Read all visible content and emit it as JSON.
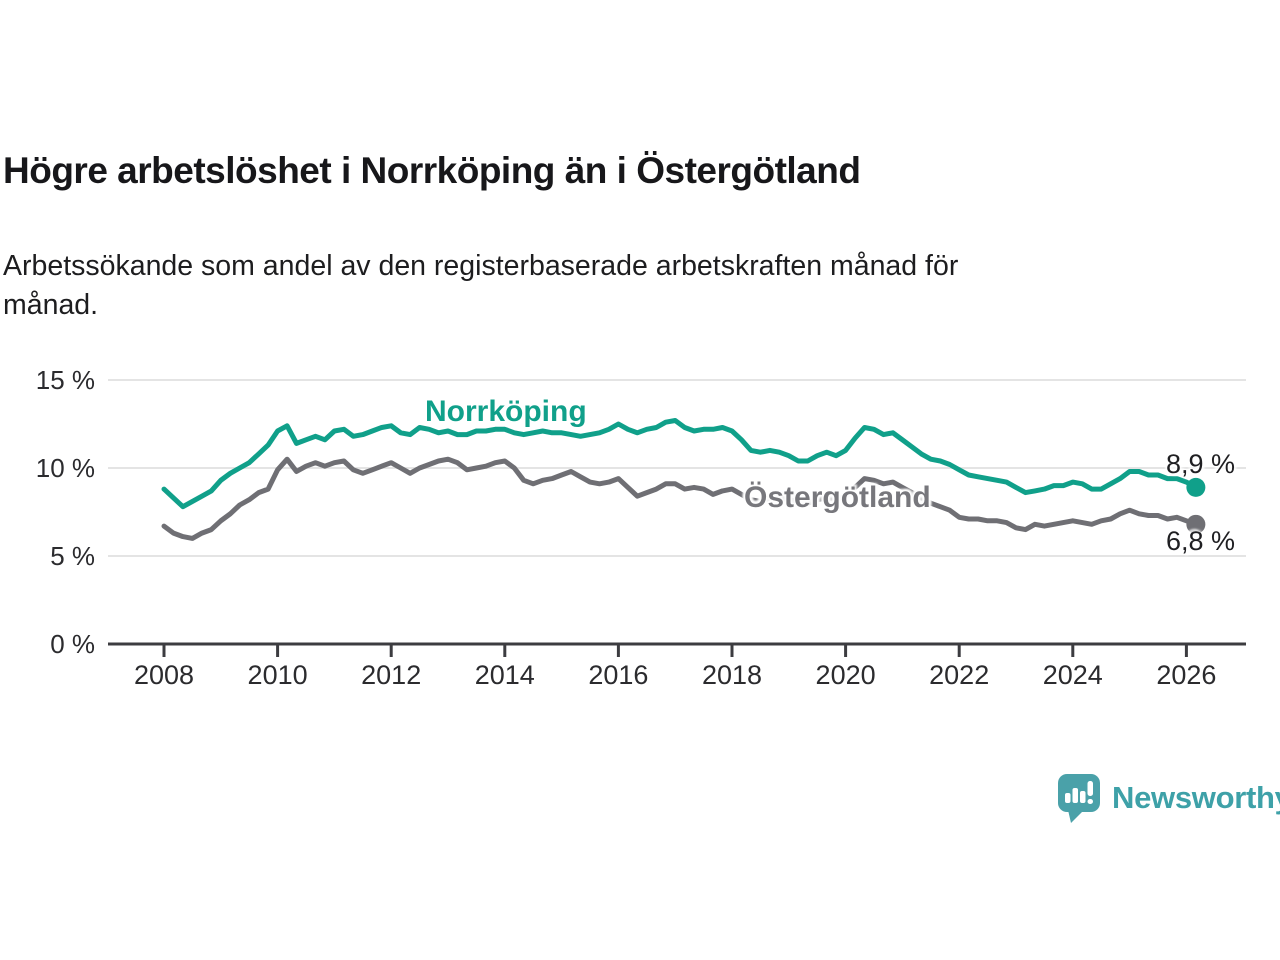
{
  "header": {
    "title": "Högre arbetslöshet i Norrköping än i Östergötland",
    "subtitle": "Arbetssökande som andel av den registerbaserade arbetskraften månad för månad.",
    "subtitle_lines": [
      "Arbetssökande som andel av den registerbaserade arbetskraften månad för",
      "månad."
    ]
  },
  "chart_data": {
    "type": "line",
    "title": "Högre arbetslöshet i Norrköping än i Östergötland",
    "subtitle": "Arbetssökande som andel av den registerbaserade arbetskraften månad för månad.",
    "grid": "horizontal-only",
    "legend": "inline-series-labels",
    "x_axis": {
      "unit": "year",
      "range_shown": [
        2007.1,
        2027.0
      ],
      "ticks": [
        2008,
        2010,
        2012,
        2014,
        2016,
        2018,
        2020,
        2022,
        2024,
        2026
      ],
      "tick_labels": [
        "2008",
        "2010",
        "2012",
        "2014",
        "2016",
        "2018",
        "2020",
        "2022",
        "2024",
        "2026"
      ]
    },
    "y_axis": {
      "unit": "%",
      "range": [
        0,
        15
      ],
      "ticks": [
        0,
        5,
        10,
        15
      ],
      "tick_labels": [
        "0 %",
        "5 %",
        "10 %",
        "15 %"
      ]
    },
    "x_start": 2008.0,
    "points_per_year": 6,
    "series": [
      {
        "name": "Norrköping",
        "color": "#10a08a",
        "end_value": 8.9,
        "end_label": "8,9 %",
        "values": [
          8.8,
          8.3,
          7.8,
          8.1,
          8.4,
          8.7,
          9.3,
          9.7,
          10.0,
          10.3,
          10.8,
          11.3,
          12.1,
          12.4,
          11.4,
          11.6,
          11.8,
          11.6,
          12.1,
          12.2,
          11.8,
          11.9,
          12.1,
          12.3,
          12.4,
          12.0,
          11.9,
          12.3,
          12.2,
          12.0,
          12.1,
          11.9,
          11.9,
          12.1,
          12.1,
          12.2,
          12.2,
          12.0,
          11.9,
          12.0,
          12.1,
          12.0,
          12.0,
          11.9,
          11.8,
          11.9,
          12.0,
          12.2,
          12.5,
          12.2,
          12.0,
          12.2,
          12.3,
          12.6,
          12.7,
          12.3,
          12.1,
          12.2,
          12.2,
          12.3,
          12.1,
          11.6,
          11.0,
          10.9,
          11.0,
          10.9,
          10.7,
          10.4,
          10.4,
          10.7,
          10.9,
          10.7,
          11.0,
          11.7,
          12.3,
          12.2,
          11.9,
          12.0,
          11.6,
          11.2,
          10.8,
          10.5,
          10.4,
          10.2,
          9.9,
          9.6,
          9.5,
          9.4,
          9.3,
          9.2,
          8.9,
          8.6,
          8.7,
          8.8,
          9.0,
          9.0,
          9.2,
          9.1,
          8.8,
          8.8,
          9.1,
          9.4,
          9.8,
          9.8,
          9.6,
          9.6,
          9.4,
          9.4,
          9.2,
          8.9
        ]
      },
      {
        "name": "Östergötland",
        "color": "#6f6f74",
        "end_value": 6.8,
        "end_label": "6,8 %",
        "values": [
          6.7,
          6.3,
          6.1,
          6.0,
          6.3,
          6.5,
          7.0,
          7.4,
          7.9,
          8.2,
          8.6,
          8.8,
          9.9,
          10.5,
          9.8,
          10.1,
          10.3,
          10.1,
          10.3,
          10.4,
          9.9,
          9.7,
          9.9,
          10.1,
          10.3,
          10.0,
          9.7,
          10.0,
          10.2,
          10.4,
          10.5,
          10.3,
          9.9,
          10.0,
          10.1,
          10.3,
          10.4,
          10.0,
          9.3,
          9.1,
          9.3,
          9.4,
          9.6,
          9.8,
          9.5,
          9.2,
          9.1,
          9.2,
          9.4,
          8.9,
          8.4,
          8.6,
          8.8,
          9.1,
          9.1,
          8.8,
          8.9,
          8.8,
          8.5,
          8.7,
          8.8,
          8.5,
          8.2,
          8.1,
          8.3,
          8.3,
          8.2,
          8.1,
          8.0,
          8.2,
          8.3,
          8.2,
          8.4,
          8.9,
          9.4,
          9.3,
          9.1,
          9.2,
          8.9,
          8.6,
          8.3,
          8.0,
          7.8,
          7.6,
          7.2,
          7.1,
          7.1,
          7.0,
          7.0,
          6.9,
          6.6,
          6.5,
          6.8,
          6.7,
          6.8,
          6.9,
          7.0,
          6.9,
          6.8,
          7.0,
          7.1,
          7.4,
          7.6,
          7.4,
          7.3,
          7.3,
          7.1,
          7.2,
          7.0,
          6.8
        ]
      }
    ],
    "colors": {
      "gridline": "#e4e4e4",
      "axis": "#3c3c40",
      "tick_text": "#2b2b2e"
    }
  },
  "branding": {
    "logo_text": "Newsworthy",
    "logo_icon": "speech-bubble-bar-chart-icon",
    "accent": "#3ea1a8"
  }
}
